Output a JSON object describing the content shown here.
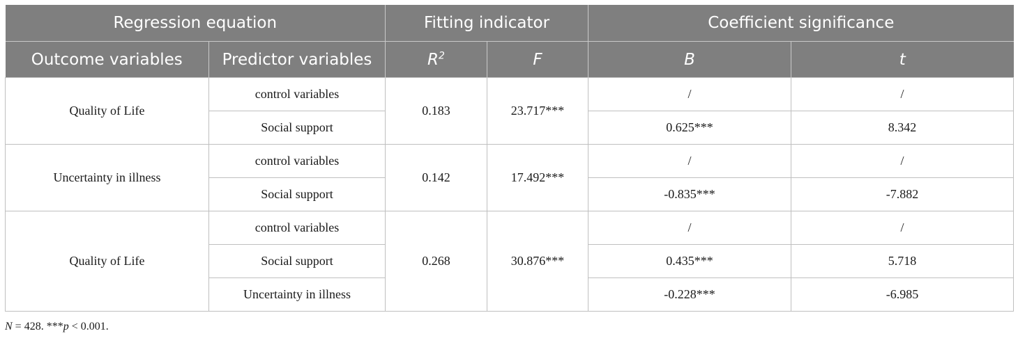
{
  "table": {
    "group_headers": {
      "regression": "Regression equation",
      "fitting": "Fitting indicator",
      "coefficient": "Coefficient significance"
    },
    "column_headers": {
      "outcome": "Outcome variables",
      "predictor": "Predictor variables",
      "r2_base": "R",
      "r2_sup": "2",
      "f": "F",
      "b": "B",
      "t": "t"
    },
    "groups": [
      {
        "outcome": "Quality of Life",
        "r2": "0.183",
        "f": "23.717***",
        "rows": [
          {
            "predictor": "control variables",
            "b": "/",
            "t": "/"
          },
          {
            "predictor": "Social support",
            "b": "0.625***",
            "t": "8.342"
          }
        ]
      },
      {
        "outcome": "Uncertainty in illness",
        "r2": "0.142",
        "f": "17.492***",
        "rows": [
          {
            "predictor": "control variables",
            "b": "/",
            "t": "/"
          },
          {
            "predictor": "Social support",
            "b": "-0.835***",
            "t": "-7.882"
          }
        ]
      },
      {
        "outcome": "Quality of Life",
        "r2": "0.268",
        "f": "30.876***",
        "rows": [
          {
            "predictor": "control variables",
            "b": "/",
            "t": "/"
          },
          {
            "predictor": "Social support",
            "b": "0.435***",
            "t": "5.718"
          },
          {
            "predictor": "Uncertainty in illness",
            "b": "-0.228***",
            "t": "-6.985"
          }
        ]
      }
    ]
  },
  "note": {
    "n_label": "N",
    "n_value": " = 428. ***",
    "p_label": "p",
    "p_value": " < 0.001."
  }
}
